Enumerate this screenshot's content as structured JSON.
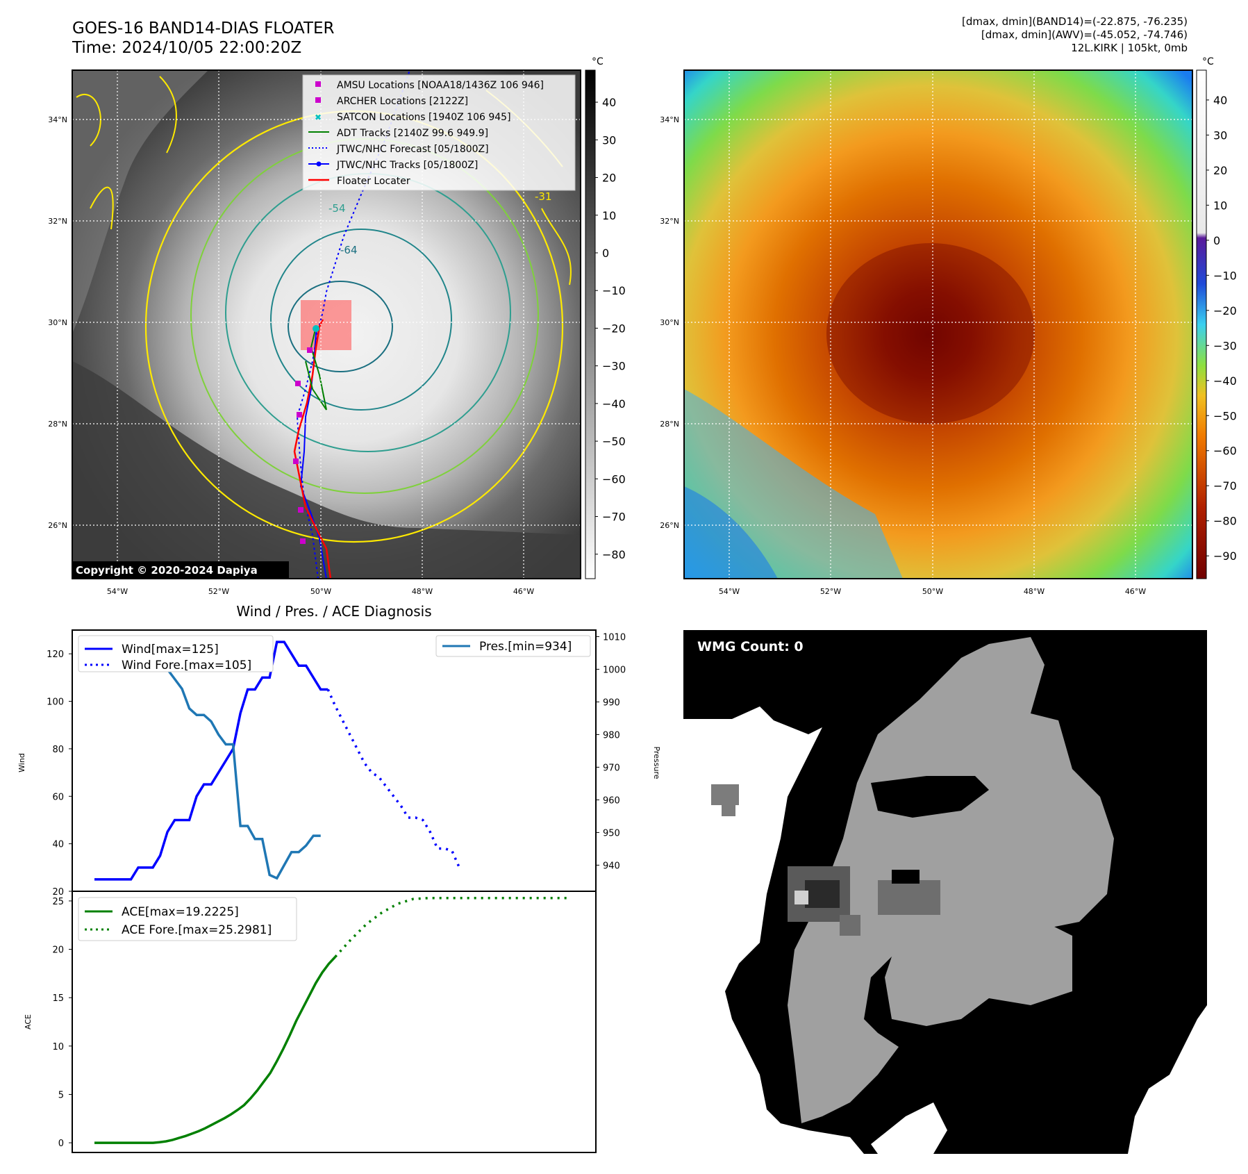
{
  "header": {
    "title_line1": "GOES-16 BAND14-DIAS FLOATER",
    "title_line2": "Time: 2024/10/05 22:00:20Z",
    "info_line1": "[dmax, dmin](BAND14)=(-22.875, -76.235)",
    "info_line2": "[dmax, dmin](AWV)=(-45.052, -74.746)",
    "info_line3": "12L.KIRK | 105kt, 0mb"
  },
  "ir_map": {
    "lat_labels": [
      "34°N",
      "32°N",
      "30°N",
      "28°N",
      "26°N"
    ],
    "lon_labels": [
      "54°W",
      "52°W",
      "50°W",
      "48°W",
      "46°W"
    ],
    "copyright": "Copyright © 2020-2024 Dapiya",
    "colorbar_unit": "°C",
    "colorbar_ticks": [
      "40",
      "30",
      "20",
      "10",
      "0",
      "−10",
      "−20",
      "−30",
      "−40",
      "−50",
      "−60",
      "−70",
      "−80"
    ],
    "contour_labels": [
      "-31",
      "-54",
      "-64"
    ],
    "legend": [
      {
        "label": "AMSU Locations [NOAA18/1436Z 106 946]",
        "color": "#cc00cc"
      },
      {
        "label": "ARCHER Locations [2122Z]",
        "color": "#cc00cc"
      },
      {
        "label": "SATCON Locations [1940Z 106 945]",
        "color": "#00c0c0"
      },
      {
        "label": "ADT Tracks [2140Z 99.6 949.9]",
        "color": "#008000"
      },
      {
        "label": "JTWC/NHC Forecast [05/1800Z]",
        "color": "#0000ff"
      },
      {
        "label": "JTWC/NHC Tracks [05/1800Z]",
        "color": "#0000ff"
      },
      {
        "label": "Floater Locater",
        "color": "#ff0000"
      }
    ]
  },
  "rainbow_map": {
    "lat_labels": [
      "34°N",
      "32°N",
      "30°N",
      "28°N",
      "26°N"
    ],
    "lon_labels": [
      "54°W",
      "52°W",
      "50°W",
      "48°W",
      "46°W"
    ],
    "colorbar_unit": "°C",
    "colorbar_ticks": [
      "40",
      "30",
      "20",
      "10",
      "0",
      "−10",
      "−20",
      "−30",
      "−40",
      "−50",
      "−60",
      "−70",
      "−80",
      "−90"
    ]
  },
  "wmg": {
    "label": "WMG Count: 0"
  },
  "chart_data": [
    {
      "type": "line",
      "title": "Wind / Pres. / ACE Diagnosis",
      "ylabel": "Wind",
      "ylabel_right": "Pressure",
      "xlabel": "",
      "ylim": [
        20,
        130
      ],
      "ylim_right": [
        932,
        1012
      ],
      "yticks": [
        "20",
        "40",
        "60",
        "80",
        "100",
        "120"
      ],
      "yticks_right": [
        "940",
        "950",
        "960",
        "970",
        "980",
        "990",
        "1000",
        "1010"
      ],
      "legend_left": [
        "Wind[max=125]",
        "Wind Fore.[max=105]"
      ],
      "legend_right": [
        "Pres.[min=934]"
      ],
      "series": [
        {
          "name": "Wind[max=125]",
          "color": "#0000ff",
          "style": "solid",
          "values": [
            25,
            25,
            25,
            25,
            25,
            25,
            30,
            30,
            30,
            35,
            45,
            50,
            50,
            50,
            60,
            65,
            65,
            70,
            75,
            80,
            95,
            105,
            105,
            110,
            110,
            125,
            125,
            120,
            115,
            115,
            110,
            105,
            105
          ]
        },
        {
          "name": "Wind Fore.[max=105]",
          "color": "#0000ff",
          "style": "dotted",
          "values": [
            105,
            98,
            92,
            86,
            80,
            74,
            70,
            68,
            64,
            60,
            56,
            51,
            51,
            50,
            45,
            38,
            38,
            37,
            30
          ]
        },
        {
          "name": "Pres.[min=934]",
          "color": "#1f77b4",
          "style": "solid",
          "values": [
            1007,
            1007,
            1007,
            1007,
            1007,
            1007,
            1006,
            1005,
            1005,
            1003,
            1000,
            997,
            994,
            988,
            986,
            986,
            984,
            980,
            977,
            977,
            952,
            952,
            948,
            948,
            937,
            936,
            940,
            944,
            944,
            946,
            949,
            949
          ]
        }
      ]
    },
    {
      "type": "line",
      "ylabel": "ACE",
      "xlabel": "",
      "ylim": [
        -1,
        26
      ],
      "yticks": [
        "0",
        "5",
        "10",
        "15",
        "20",
        "25"
      ],
      "legend": [
        "ACE[max=19.2225]",
        "ACE Fore.[max=25.2981]"
      ],
      "series": [
        {
          "name": "ACE[max=19.2225]",
          "color": "#008000",
          "style": "solid",
          "values": [
            0,
            0,
            0,
            0,
            0,
            0,
            0,
            0,
            0,
            0,
            0.06,
            0.15,
            0.3,
            0.5,
            0.7,
            0.95,
            1.2,
            1.5,
            1.85,
            2.2,
            2.55,
            2.95,
            3.4,
            3.9,
            4.6,
            5.4,
            6.3,
            7.2,
            8.4,
            9.7,
            11.1,
            12.6,
            13.9,
            15.2,
            16.5,
            17.6,
            18.5,
            19.2225
          ]
        },
        {
          "name": "ACE Fore.[max=25.2981]",
          "color": "#008000",
          "style": "dotted",
          "values": [
            19.2225,
            21.0,
            22.6,
            23.8,
            24.7,
            25.2,
            25.2981,
            25.2981,
            25.2981,
            25.2981,
            25.2981,
            25.2981,
            25.2981,
            25.2981,
            25.2981,
            25.2981
          ]
        }
      ]
    }
  ]
}
